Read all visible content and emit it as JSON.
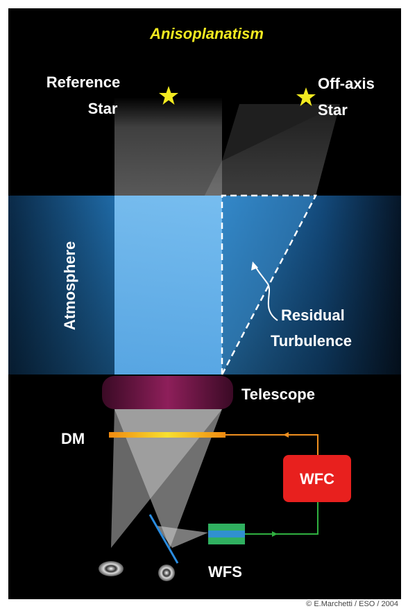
{
  "title": "Anisoplanatism",
  "labels": {
    "reference_star": [
      "Reference",
      "Star"
    ],
    "off_axis_star": [
      "Off-axis",
      "Star"
    ],
    "atmosphere": "Atmosphere",
    "residual_turbulence": [
      "Residual",
      "Turbulence"
    ],
    "telescope": "Telescope",
    "dm": "DM",
    "wfc": "WFC",
    "wfs": "WFS"
  },
  "credit": "© E.Marchetti / ESO / 2004"
}
